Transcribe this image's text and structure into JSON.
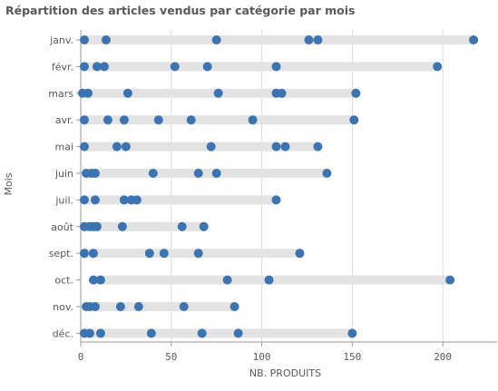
{
  "chart_data": {
    "type": "scatter",
    "title": "Répartition des articles vendus par catégorie par mois",
    "xlabel": "NB. PRODUITS",
    "ylabel": "Mois",
    "xlim": [
      0,
      230
    ],
    "xticks": [
      0,
      50,
      100,
      150,
      200
    ],
    "grid": true,
    "colors": {
      "point": "#3c74b1",
      "range_bar": "#e3e3e3",
      "grid": "#dcdcdc",
      "axis": "#9a9a9a",
      "text": "#595959"
    },
    "categories": [
      "janv.",
      "févr.",
      "mars",
      "avr.",
      "mai",
      "juin",
      "juil.",
      "août",
      "sept.",
      "oct.",
      "nov.",
      "déc."
    ],
    "values": [
      [
        2,
        14,
        75,
        126,
        131,
        217
      ],
      [
        2,
        9,
        13,
        52,
        70,
        108,
        197
      ],
      [
        1,
        4,
        26,
        76,
        108,
        111,
        152
      ],
      [
        2,
        15,
        24,
        43,
        61,
        95,
        151
      ],
      [
        2,
        20,
        25,
        72,
        108,
        113,
        131
      ],
      [
        3,
        6,
        8,
        40,
        65,
        75,
        136
      ],
      [
        2,
        8,
        24,
        28,
        31,
        108
      ],
      [
        2,
        5,
        7,
        9,
        23,
        56,
        68
      ],
      [
        2,
        7,
        38,
        46,
        65,
        121
      ],
      [
        7,
        11,
        81,
        104,
        204
      ],
      [
        3,
        5,
        8,
        22,
        32,
        57,
        85
      ],
      [
        2,
        5,
        11,
        39,
        67,
        87,
        150
      ]
    ]
  }
}
